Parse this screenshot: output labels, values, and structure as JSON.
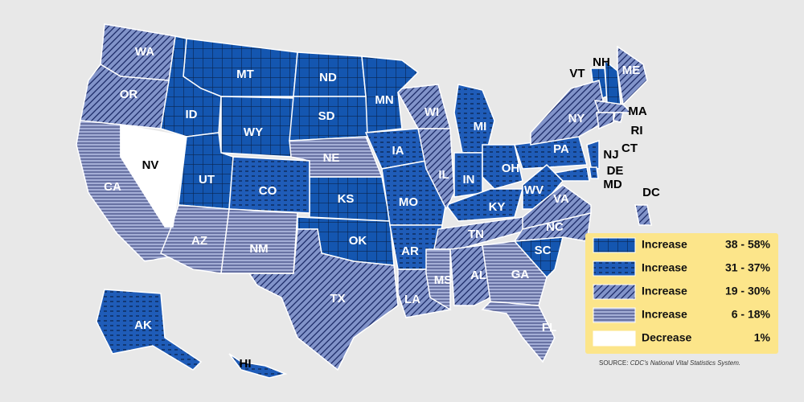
{
  "legend": {
    "items": [
      {
        "label": "Increase",
        "range": "38 - 58%",
        "color": "#1456b0",
        "states": [
          "MT",
          "ND",
          "MN",
          "ID",
          "WY",
          "SD",
          "UT",
          "KS",
          "OK",
          "SC",
          "VT",
          "NH"
        ]
      },
      {
        "label": "Increase",
        "range": "31 - 37%",
        "color": "#1f5cb8",
        "states": [
          "CO",
          "IA",
          "MO",
          "AR",
          "MI",
          "IN",
          "OH",
          "PA",
          "KY",
          "WV",
          "NJ",
          "DE",
          "MD",
          "AK",
          "HI"
        ]
      },
      {
        "label": "Increase",
        "range": "19 - 30%",
        "color": "#8193c9",
        "states": [
          "WA",
          "OR",
          "WI",
          "IL",
          "NY",
          "ME",
          "MA",
          "RI",
          "CT",
          "TX",
          "TN",
          "AL",
          "LA",
          "VA",
          "NC",
          "DC"
        ]
      },
      {
        "label": "Increase",
        "range": "6 - 18%",
        "color": "#a4aed6",
        "states": [
          "CA",
          "AZ",
          "NM",
          "NE",
          "MS",
          "GA",
          "FL"
        ]
      },
      {
        "label": "Decrease",
        "range": "1%",
        "color": "#ffffff",
        "states": [
          "NV"
        ]
      }
    ]
  },
  "source": {
    "label": "SOURCE:",
    "text": "CDC's National Vital Statistics System."
  }
}
